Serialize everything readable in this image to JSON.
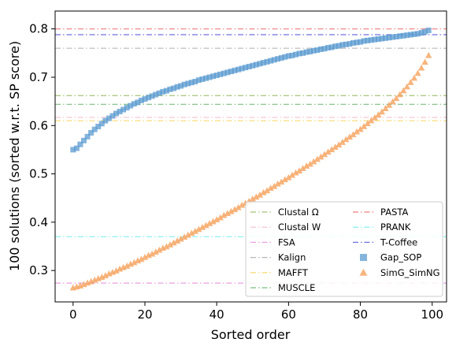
{
  "chart_data": {
    "type": "scatter",
    "xlabel": "Sorted order",
    "ylabel": "100 solutions (sorted w.r.t. SP score)",
    "xlim": [
      -5,
      104
    ],
    "ylim": [
      0.235,
      0.837
    ],
    "xticks": [
      0,
      20,
      40,
      60,
      80,
      100
    ],
    "yticks": [
      0.3,
      0.4,
      0.5,
      0.6,
      0.7,
      0.8
    ],
    "xtick_labels": [
      "0",
      "20",
      "40",
      "60",
      "80",
      "100"
    ],
    "ytick_labels": [
      "0.3",
      "0.4",
      "0.5",
      "0.6",
      "0.7",
      "0.8"
    ],
    "grid": false,
    "legend_position": "lower-right",
    "reference_lines": [
      {
        "name": "Clustal Ω",
        "y": 0.662,
        "color": "#a8c47a"
      },
      {
        "name": "Clustal W",
        "y": 0.617,
        "color": "#f6c9d6"
      },
      {
        "name": "FSA",
        "y": 0.274,
        "color": "#e8a2e0"
      },
      {
        "name": "Kalign",
        "y": 0.76,
        "color": "#b7b7b7"
      },
      {
        "name": "MAFFT",
        "y": 0.61,
        "color": "#f7dd7e"
      },
      {
        "name": "MUSCLE",
        "y": 0.644,
        "color": "#7bbf82"
      },
      {
        "name": "PASTA",
        "y": 0.8,
        "color": "#ef7e7e"
      },
      {
        "name": "PRANK",
        "y": 0.37,
        "color": "#8ff0ef"
      },
      {
        "name": "T-Coffee",
        "y": 0.788,
        "color": "#6f72dd"
      }
    ],
    "series": [
      {
        "name": "Gap_SOP",
        "marker": "square",
        "color": "#5b9bd0",
        "x_range": [
          0,
          99
        ],
        "y": [
          0.55,
          0.553,
          0.561,
          0.569,
          0.577,
          0.585,
          0.592,
          0.598,
          0.604,
          0.61,
          0.615,
          0.62,
          0.625,
          0.629,
          0.633,
          0.637,
          0.641,
          0.645,
          0.648,
          0.652,
          0.655,
          0.658,
          0.661,
          0.664,
          0.667,
          0.67,
          0.672,
          0.675,
          0.677,
          0.68,
          0.682,
          0.685,
          0.687,
          0.689,
          0.691,
          0.694,
          0.696,
          0.698,
          0.7,
          0.702,
          0.704,
          0.706,
          0.708,
          0.71,
          0.712,
          0.714,
          0.716,
          0.718,
          0.72,
          0.722,
          0.724,
          0.726,
          0.728,
          0.73,
          0.732,
          0.734,
          0.736,
          0.738,
          0.74,
          0.742,
          0.744,
          0.745,
          0.747,
          0.749,
          0.75,
          0.752,
          0.753,
          0.755,
          0.756,
          0.758,
          0.759,
          0.761,
          0.762,
          0.764,
          0.765,
          0.767,
          0.768,
          0.769,
          0.771,
          0.772,
          0.773,
          0.775,
          0.776,
          0.777,
          0.778,
          0.779,
          0.78,
          0.781,
          0.782,
          0.783,
          0.784,
          0.785,
          0.786,
          0.787,
          0.788,
          0.789,
          0.79,
          0.792,
          0.794,
          0.797
        ]
      },
      {
        "name": "SimG_SimNG",
        "marker": "triangle",
        "color": "#f5a25e",
        "x_range": [
          0,
          99
        ],
        "y": [
          0.264,
          0.266,
          0.268,
          0.271,
          0.274,
          0.277,
          0.28,
          0.283,
          0.286,
          0.289,
          0.293,
          0.296,
          0.299,
          0.303,
          0.306,
          0.309,
          0.313,
          0.316,
          0.32,
          0.323,
          0.327,
          0.331,
          0.334,
          0.338,
          0.342,
          0.346,
          0.349,
          0.353,
          0.357,
          0.361,
          0.365,
          0.369,
          0.373,
          0.377,
          0.381,
          0.385,
          0.389,
          0.393,
          0.397,
          0.401,
          0.405,
          0.409,
          0.414,
          0.418,
          0.422,
          0.426,
          0.43,
          0.435,
          0.439,
          0.443,
          0.448,
          0.452,
          0.456,
          0.461,
          0.465,
          0.47,
          0.474,
          0.479,
          0.483,
          0.488,
          0.492,
          0.497,
          0.502,
          0.506,
          0.511,
          0.516,
          0.52,
          0.525,
          0.53,
          0.535,
          0.54,
          0.545,
          0.55,
          0.555,
          0.56,
          0.565,
          0.571,
          0.576,
          0.581,
          0.587,
          0.592,
          0.598,
          0.604,
          0.61,
          0.616,
          0.622,
          0.628,
          0.635,
          0.642,
          0.649,
          0.656,
          0.664,
          0.672,
          0.68,
          0.689,
          0.698,
          0.708,
          0.719,
          0.731,
          0.745
        ]
      }
    ]
  }
}
